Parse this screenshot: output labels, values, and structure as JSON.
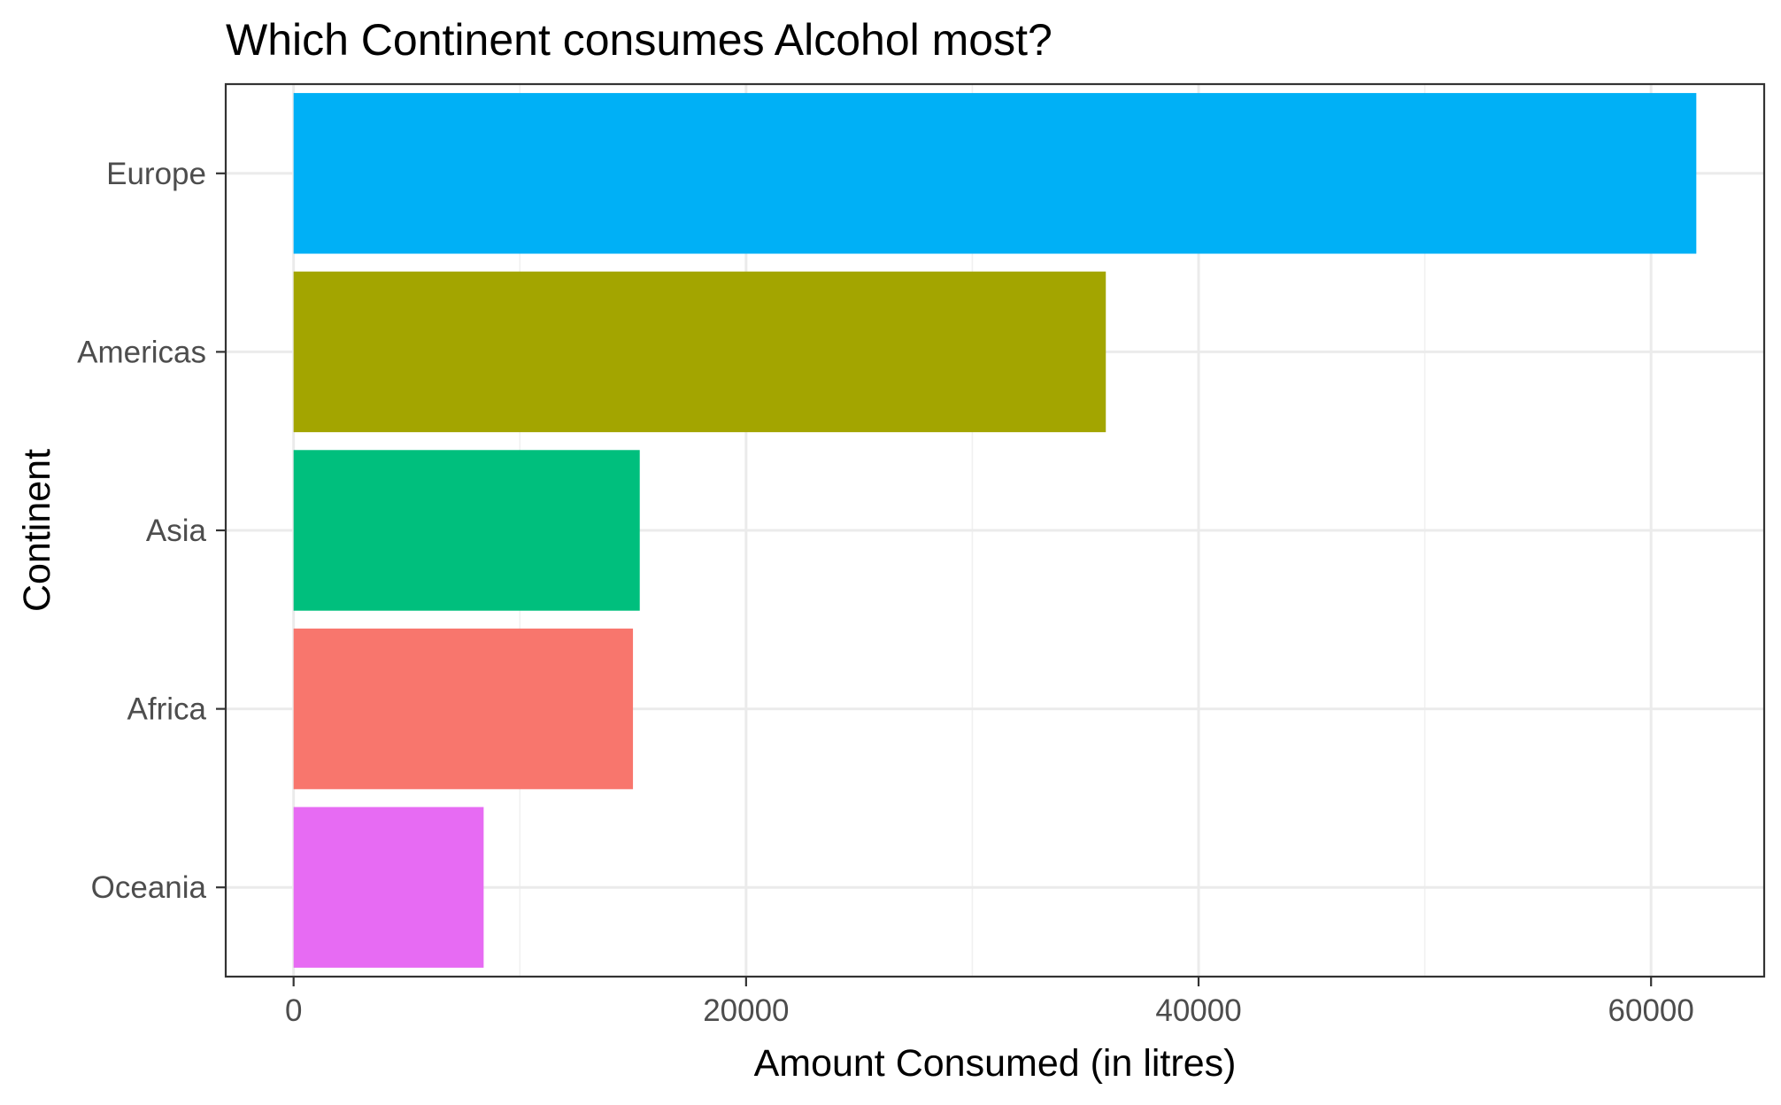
{
  "chart_data": {
    "type": "bar",
    "orientation": "horizontal",
    "title": "Which Continent consumes Alcohol most?",
    "xlabel": "Amount Consumed (in litres)",
    "ylabel": "Continent",
    "categories": [
      "Europe",
      "Americas",
      "Asia",
      "Africa",
      "Oceania"
    ],
    "values": [
      62000,
      35900,
      15300,
      15000,
      8400
    ],
    "colors": [
      "#00B0F6",
      "#A3A500",
      "#00BF7D",
      "#F8766D",
      "#E76BF3"
    ],
    "xlim": [
      -3000,
      65000
    ],
    "xticks": [
      0,
      20000,
      40000,
      60000
    ],
    "xtick_labels": [
      "0",
      "20000",
      "40000",
      "60000"
    ],
    "grid": true,
    "legend": "none"
  }
}
